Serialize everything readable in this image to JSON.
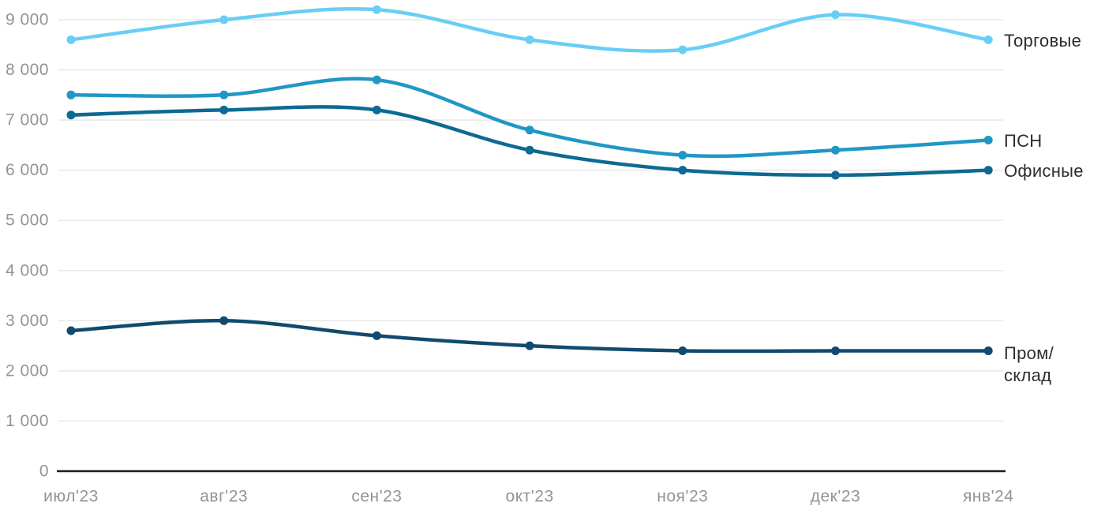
{
  "chart_data": {
    "type": "line",
    "title": "",
    "xlabel": "",
    "ylabel": "",
    "x": [
      "июл'23",
      "авг'23",
      "сен'23",
      "окт'23",
      "ноя'23",
      "дек'23",
      "янв'24"
    ],
    "series": [
      {
        "name": "Торговые",
        "label_lines": [
          "Торговые"
        ],
        "color": "#68CEF5",
        "values": [
          8600,
          9000,
          9200,
          8600,
          8400,
          9100,
          8600
        ]
      },
      {
        "name": "ПСН",
        "label_lines": [
          "ПСН"
        ],
        "color": "#2097C5",
        "values": [
          7500,
          7500,
          7800,
          6800,
          6300,
          6400,
          6600
        ]
      },
      {
        "name": "Офисные",
        "label_lines": [
          "Офисные"
        ],
        "color": "#0D6A93",
        "values": [
          7100,
          7200,
          7200,
          6400,
          6000,
          5900,
          6000
        ]
      },
      {
        "name": "Пром/склад",
        "label_lines": [
          "Пром/",
          "склад"
        ],
        "color": "#114A6E",
        "values": [
          2800,
          3000,
          2700,
          2500,
          2400,
          2400,
          2400
        ]
      }
    ],
    "y_ticks": [
      {
        "label": "9 000",
        "value": 9000
      },
      {
        "label": "8 000",
        "value": 8000
      },
      {
        "label": "7 000",
        "value": 7000
      },
      {
        "label": "6 000",
        "value": 6000
      },
      {
        "label": "5 000",
        "value": 5000
      },
      {
        "label": "4 000",
        "value": 4000
      },
      {
        "label": "3 000",
        "value": 3000
      },
      {
        "label": "2 000",
        "value": 2000
      },
      {
        "label": "1 000",
        "value": 1000
      },
      {
        "label": "0",
        "value": 0
      }
    ],
    "ylim": [
      0,
      9400
    ],
    "grid": true,
    "legend_position": "right-of-line-end",
    "colors": {
      "grid": "#E8E8E8",
      "axis": "#1C1C1C",
      "tick_text": "#949494",
      "series_label_text": "#2D2D2D",
      "background": "#FFFFFF"
    }
  }
}
